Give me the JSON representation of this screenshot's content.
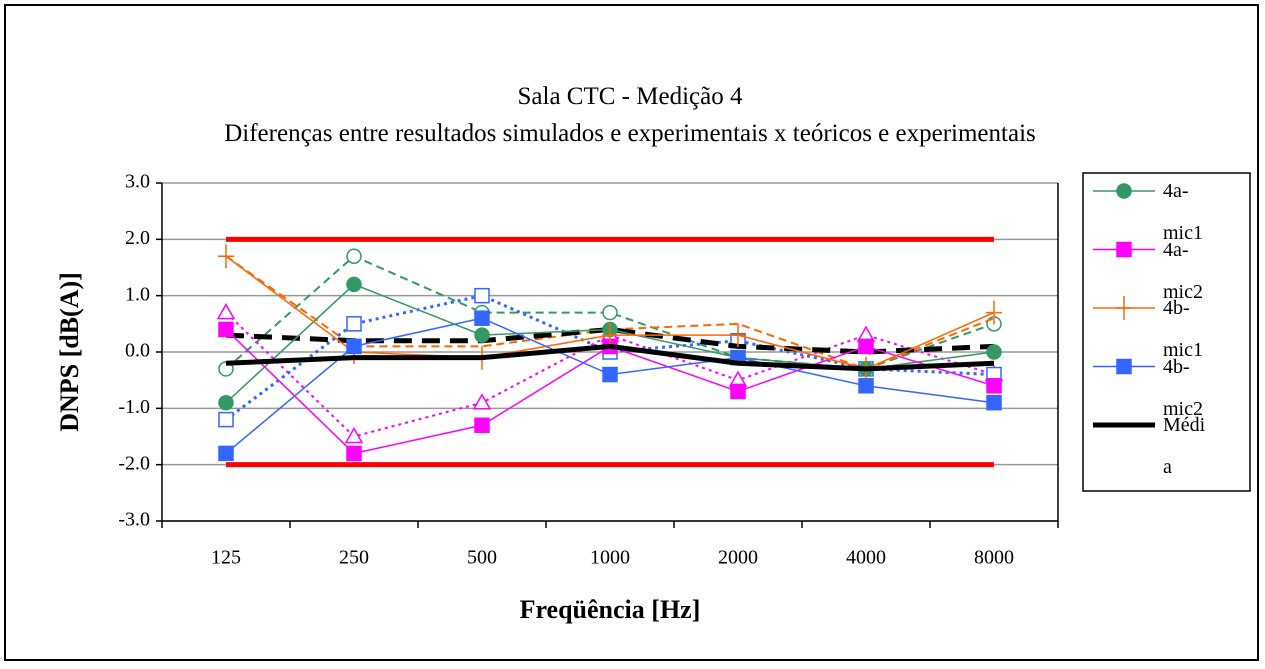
{
  "chart_data": {
    "type": "line",
    "title": "Sala CTC - Medição 4",
    "subtitle": "Diferenças entre resultados simulados e experimentais x teóricos e experimentais",
    "x_label": "Freqüência [Hz]",
    "y_label": "DNPS [dB(A)]",
    "categories": [
      "125",
      "250",
      "500",
      "1000",
      "2000",
      "4000",
      "8000"
    ],
    "ylim": [
      -3,
      3
    ],
    "yticks": [
      {
        "value": -3,
        "label": "-3.0"
      },
      {
        "value": -2,
        "label": "-2.0"
      },
      {
        "value": -1,
        "label": "-1.0"
      },
      {
        "value": 0,
        "label": "0.0"
      },
      {
        "value": 1,
        "label": "1.0"
      },
      {
        "value": 2,
        "label": "2.0"
      },
      {
        "value": 3,
        "label": "3.0"
      }
    ],
    "grid": true,
    "legend": "right",
    "series": [
      {
        "color": "#ff0000",
        "dash": "solid",
        "width": 5,
        "marker": "none",
        "values": [
          2,
          2,
          2,
          2,
          2,
          2,
          2
        ]
      },
      {
        "color": "#ff0000",
        "dash": "solid",
        "width": 5,
        "marker": "none",
        "values": [
          -2,
          -2,
          -2,
          -2,
          -2,
          -2,
          -2
        ]
      },
      {
        "color": "#339966",
        "dash": "dashed",
        "width": 2,
        "marker": "circle",
        "filled": false,
        "values": [
          -0.3,
          1.7,
          0.7,
          0.7,
          -0.1,
          -0.3,
          0.5
        ]
      },
      {
        "color": "#ff00ff",
        "dash": "dotted",
        "width": 2,
        "marker": "triangle",
        "filled": false,
        "values": [
          0.7,
          -1.5,
          -0.9,
          0.3,
          -0.5,
          0.3,
          -0.4
        ]
      },
      {
        "color": "#ff6600",
        "dash": "dashed",
        "width": 2,
        "marker": "none",
        "values": [
          1.7,
          0.1,
          0.1,
          0.4,
          0.5,
          -0.3,
          0.6
        ]
      },
      {
        "color": "#3366ff",
        "dash": "dotted",
        "width": 3,
        "marker": "square",
        "filled": false,
        "values": [
          -1.2,
          0.5,
          1.0,
          0.0,
          0.2,
          -0.3,
          -0.4
        ]
      },
      {
        "color": "#000000",
        "dash": "longdash",
        "width": 5,
        "marker": "none",
        "values": [
          0.3,
          0.2,
          0.2,
          0.4,
          0.1,
          0.0,
          0.1
        ]
      },
      {
        "name": "4a-mic1",
        "color": "#339966",
        "dash": "solid",
        "width": 1.5,
        "marker": "circle",
        "filled": true,
        "values": [
          -0.9,
          1.2,
          0.3,
          0.4,
          -0.1,
          -0.3,
          0.0
        ]
      },
      {
        "name": "4a-mic2",
        "color": "#ff00ff",
        "dash": "solid",
        "width": 1.5,
        "marker": "square",
        "filled": true,
        "values": [
          0.4,
          -1.8,
          -1.3,
          0.1,
          -0.7,
          0.1,
          -0.6
        ]
      },
      {
        "name": "4b-mic1",
        "color": "#ff6600",
        "dash": "solid",
        "width": 1.5,
        "marker": "plus",
        "filled": true,
        "values": [
          1.7,
          0.0,
          -0.1,
          0.3,
          0.3,
          -0.3,
          0.7
        ]
      },
      {
        "name": "4b-mic2",
        "color": "#3366ff",
        "dash": "solid",
        "width": 1.5,
        "marker": "square",
        "filled": true,
        "values": [
          -1.8,
          0.1,
          0.6,
          -0.4,
          -0.1,
          -0.6,
          -0.9
        ]
      },
      {
        "name": "Média",
        "color": "#000000",
        "dash": "solid",
        "width": 5,
        "marker": "none",
        "values": [
          -0.2,
          -0.1,
          -0.1,
          0.1,
          -0.2,
          -0.3,
          -0.2
        ]
      }
    ]
  }
}
